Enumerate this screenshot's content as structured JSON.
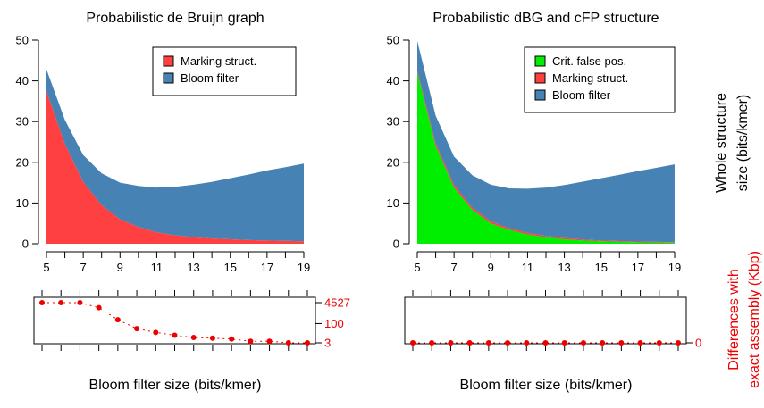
{
  "colors": {
    "marking": "#ff4040",
    "bloom": "#4682b4",
    "cfp": "#00ee00",
    "diff": "#ee0000"
  },
  "shared_xlabel": "Bloom filter size (bits/kmer)",
  "right_ylabel": [
    "Whole structure",
    "size (bits/kmer)"
  ],
  "right_ylabel_diff": [
    "Differences with",
    "exact assembly (Kbp)"
  ],
  "chart_data": [
    {
      "type": "area",
      "title": "Probabilistic de Bruijn graph",
      "x": [
        5,
        6,
        7,
        8,
        9,
        10,
        11,
        12,
        13,
        14,
        15,
        16,
        17,
        18,
        19
      ],
      "xticks": [
        5,
        7,
        9,
        11,
        13,
        15,
        17,
        19
      ],
      "ylim": [
        0,
        50
      ],
      "yticks": [
        0,
        10,
        20,
        30,
        40,
        50
      ],
      "stacked": true,
      "legend_position": "top-right",
      "series": [
        {
          "name": "Marking struct.",
          "color": "#ff4040",
          "values": [
            37.5,
            24.5,
            15.2,
            9.5,
            6.0,
            4.1,
            2.8,
            2.1,
            1.6,
            1.3,
            1.1,
            0.9,
            0.8,
            0.7,
            0.6
          ]
        },
        {
          "name": "Bloom filter",
          "color": "#4682b4",
          "values": [
            5.3,
            5.9,
            6.6,
            7.8,
            9.0,
            10.1,
            11.0,
            11.9,
            12.9,
            13.9,
            15.0,
            16.1,
            17.2,
            18.1,
            19.1
          ]
        }
      ]
    },
    {
      "type": "area",
      "title": "Probabilistic dBG and cFP structure",
      "x": [
        5,
        6,
        7,
        8,
        9,
        10,
        11,
        12,
        13,
        14,
        15,
        16,
        17,
        18,
        19
      ],
      "xticks": [
        5,
        7,
        9,
        11,
        13,
        15,
        17,
        19
      ],
      "ylim": [
        0,
        50
      ],
      "yticks": [
        0,
        10,
        20,
        30,
        40,
        50
      ],
      "stacked": true,
      "legend_position": "top-right",
      "series": [
        {
          "name": "Crit. false pos.",
          "color": "#00ee00",
          "values": [
            42.0,
            24.0,
            13.8,
            8.3,
            5.0,
            3.4,
            2.3,
            1.6,
            1.1,
            0.8,
            0.6,
            0.45,
            0.35,
            0.3,
            0.25
          ]
        },
        {
          "name": "Marking struct.",
          "color": "#ff4040",
          "values": [
            0.5,
            0.6,
            0.6,
            0.5,
            0.5,
            0.4,
            0.4,
            0.3,
            0.3,
            0.25,
            0.2,
            0.2,
            0.2,
            0.15,
            0.15
          ]
        },
        {
          "name": "Bloom filter",
          "color": "#4682b4",
          "values": [
            7.3,
            6.8,
            7.0,
            8.0,
            9.0,
            9.8,
            10.8,
            11.9,
            13.0,
            14.2,
            15.3,
            16.3,
            17.3,
            18.2,
            19.1
          ]
        }
      ]
    },
    {
      "type": "scatter",
      "x": [
        5,
        6,
        7,
        8,
        9,
        10,
        11,
        12,
        13,
        14,
        15,
        16,
        17,
        18,
        19
      ],
      "y": [
        4527,
        4527,
        4527,
        1800,
        200,
        40,
        20,
        12,
        8,
        7,
        6,
        4,
        4,
        3,
        3
      ],
      "yscale": "log",
      "yticks": [
        3,
        100,
        4527
      ],
      "ytick_labels": [
        "3",
        "100",
        "4527"
      ],
      "color": "#ee0000"
    },
    {
      "type": "scatter",
      "x": [
        5,
        6,
        7,
        8,
        9,
        10,
        11,
        12,
        13,
        14,
        15,
        16,
        17,
        18,
        19
      ],
      "y": [
        0,
        0,
        0,
        0,
        0,
        0,
        0,
        0,
        0,
        0,
        0,
        0,
        0,
        0,
        0
      ],
      "yticks": [
        0
      ],
      "ytick_labels": [
        "0"
      ],
      "color": "#ee0000"
    }
  ]
}
